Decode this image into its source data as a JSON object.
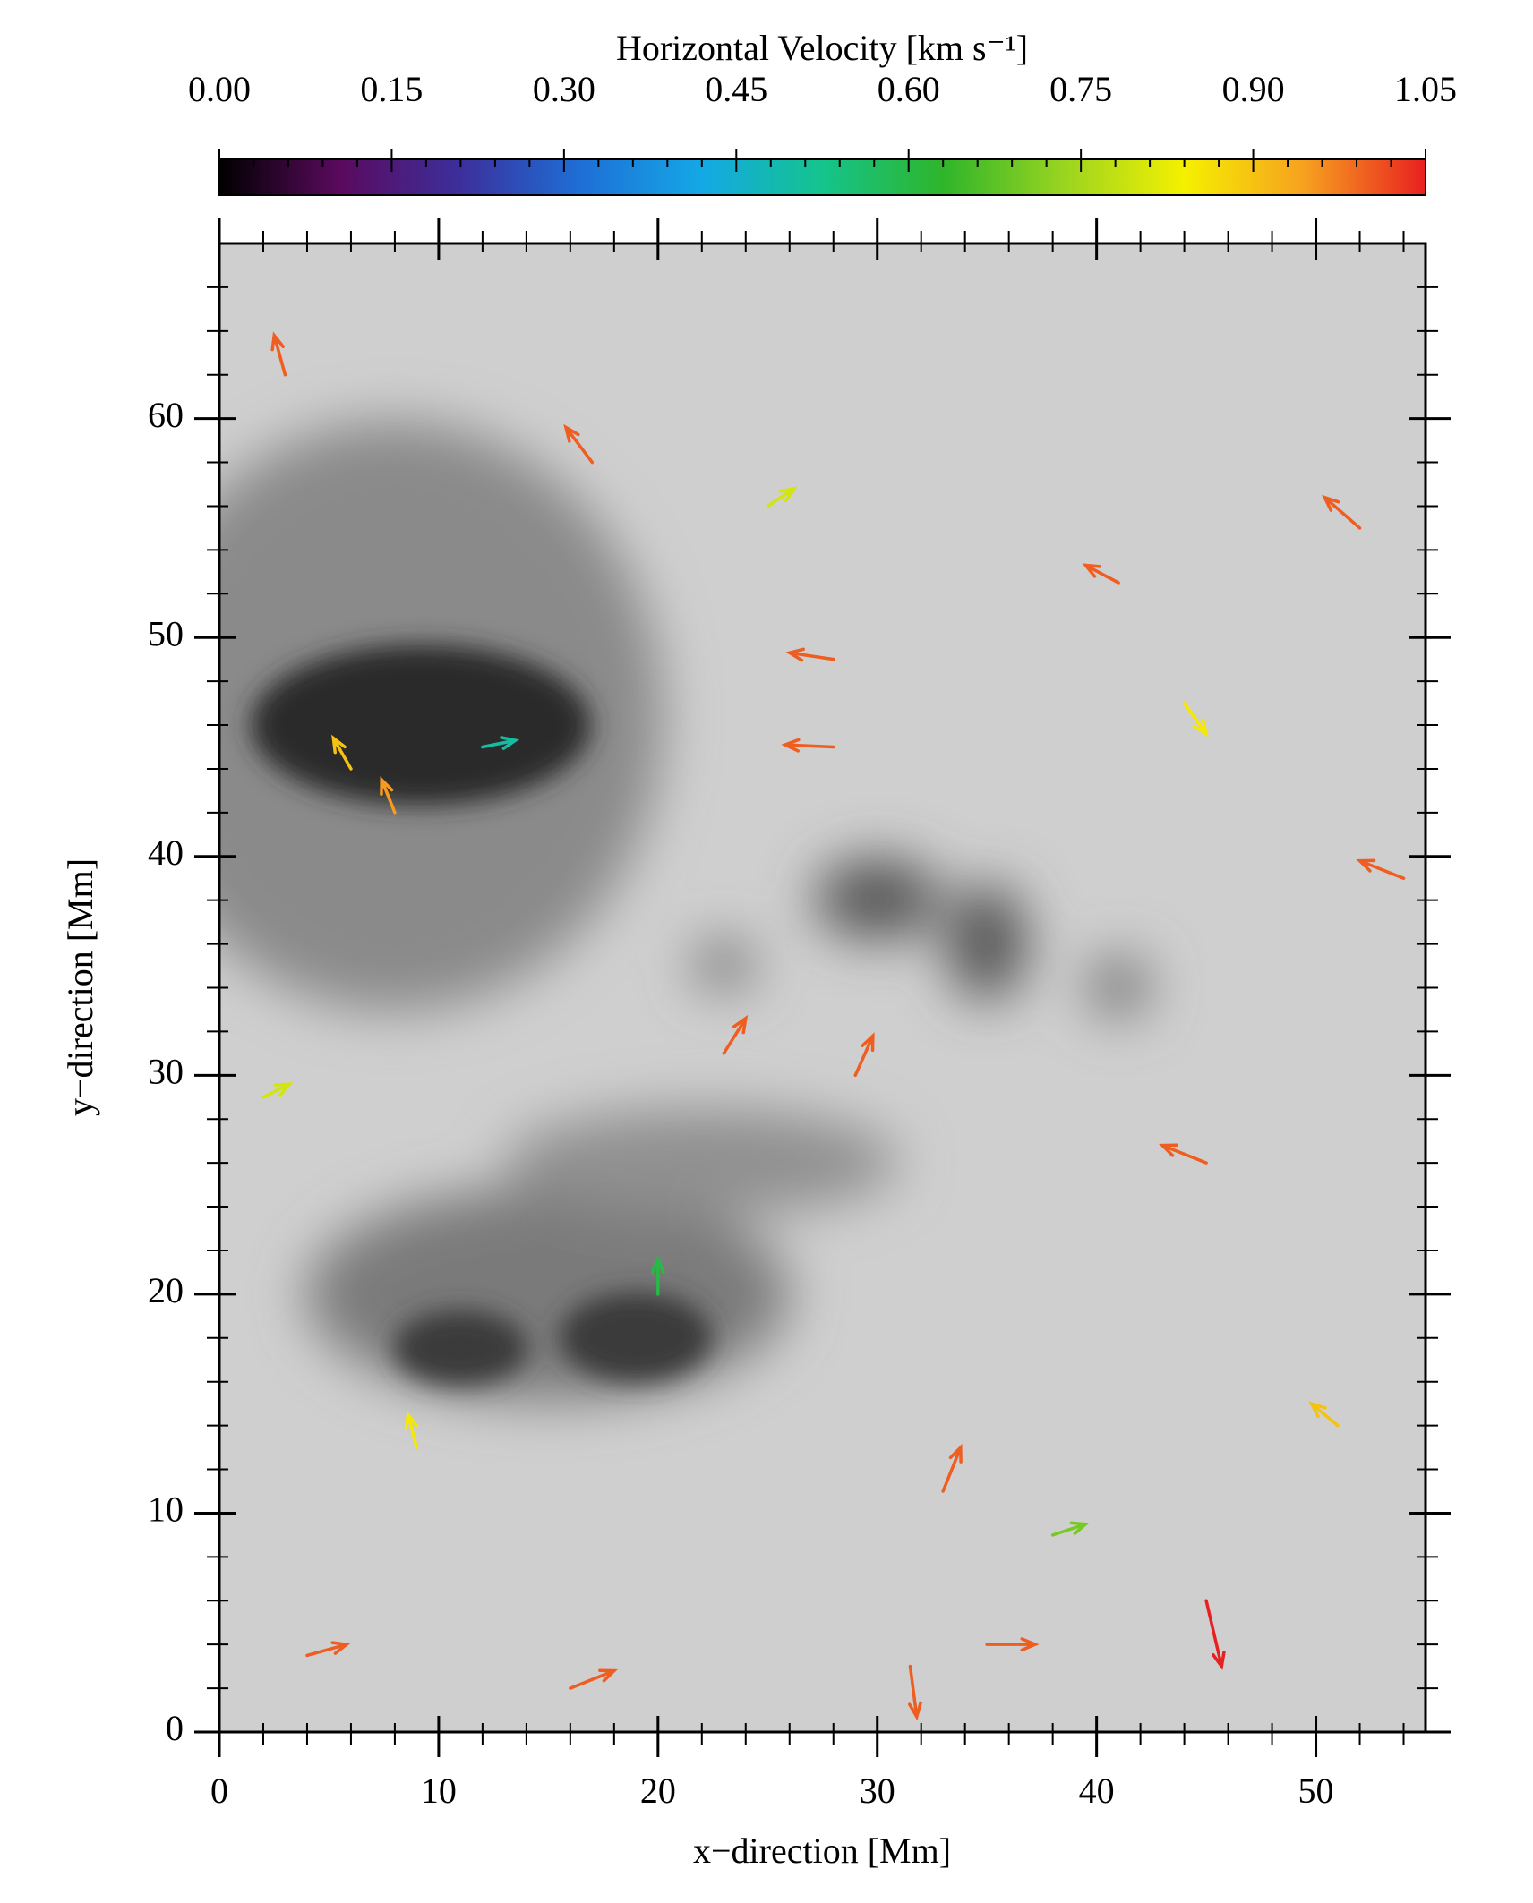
{
  "chart_data": {
    "type": "quiver",
    "colorbar_label": "Horizontal Velocity   [km s⁻¹]",
    "xlabel": "x−direction   [Mm]",
    "ylabel": "y−direction   [Mm]",
    "xlim": [
      0,
      55
    ],
    "ylim": [
      0,
      68
    ],
    "xticks": [
      0,
      10,
      20,
      30,
      40,
      50
    ],
    "yticks": [
      0,
      10,
      20,
      30,
      40,
      50,
      60
    ],
    "xticks_minor": [
      2,
      4,
      6,
      8,
      12,
      14,
      16,
      18,
      22,
      24,
      26,
      28,
      32,
      34,
      36,
      38,
      42,
      44,
      46,
      48,
      52,
      54
    ],
    "yticks_minor": [
      2,
      4,
      6,
      8,
      12,
      14,
      16,
      18,
      22,
      24,
      26,
      28,
      32,
      34,
      36,
      38,
      42,
      44,
      46,
      48,
      52,
      54,
      56,
      58,
      62,
      64,
      66
    ],
    "clim": [
      0,
      1.05
    ],
    "cticks": [
      {
        "value": 0,
        "label": "0.00"
      },
      {
        "value": 0.15,
        "label": "0.15"
      },
      {
        "value": 0.3,
        "label": "0.30"
      },
      {
        "value": 0.45,
        "label": "0.45"
      },
      {
        "value": 0.6,
        "label": "0.60"
      },
      {
        "value": 0.75,
        "label": "0.75"
      },
      {
        "value": 0.9,
        "label": "0.90"
      },
      {
        "value": 1.05,
        "label": "1.05"
      }
    ],
    "cticks_minor": [
      0.03,
      0.06,
      0.09,
      0.12,
      0.18,
      0.21,
      0.24,
      0.27,
      0.33,
      0.36,
      0.39,
      0.42,
      0.48,
      0.51,
      0.54,
      0.57,
      0.63,
      0.66,
      0.69,
      0.72,
      0.78,
      0.81,
      0.84,
      0.87,
      0.93,
      0.96,
      0.99,
      1.02
    ],
    "colormap": [
      "#000000",
      "#5a0a5e",
      "#3c2f9c",
      "#1e6fd6",
      "#14a8e6",
      "#14c48c",
      "#2fb52a",
      "#9ad420",
      "#f5f000",
      "#f7a020",
      "#e82020"
    ],
    "vectors": {
      "x": [
        3,
        6,
        8,
        17,
        28,
        28,
        41,
        52,
        54,
        23,
        29,
        45,
        33,
        45,
        31.5,
        35,
        16,
        4,
        51,
        25,
        9,
        2,
        44,
        12,
        20,
        38
      ],
      "y": [
        62,
        44,
        42,
        58,
        45,
        49,
        52.5,
        55,
        39,
        31,
        30,
        26,
        11,
        6,
        3,
        4,
        2,
        3.5,
        14,
        56,
        13,
        29,
        47,
        45,
        20,
        9
      ],
      "u": [
        -0.5,
        -0.8,
        -0.6,
        -1.2,
        -2.2,
        -2,
        -1.5,
        -1.6,
        -2,
        1,
        0.8,
        -2,
        0.8,
        0.7,
        0.3,
        2.2,
        2,
        1.8,
        -1.2,
        1.2,
        -0.4,
        1.2,
        1,
        1.5,
        0,
        1.5
      ],
      "v": [
        1.8,
        1.4,
        1.5,
        1.6,
        0.1,
        0.3,
        0.8,
        1.4,
        0.8,
        1.6,
        1.8,
        0.8,
        2,
        -3,
        -2.3,
        0,
        0.8,
        0.5,
        1,
        0.8,
        1.5,
        0.6,
        -1.4,
        0.3,
        1.6,
        0.5
      ],
      "speed": [
        1,
        0.9,
        0.95,
        1,
        1,
        1,
        1,
        1,
        1,
        1,
        1,
        1,
        1,
        1.05,
        1,
        1,
        1,
        1,
        0.9,
        0.8,
        0.85,
        0.8,
        0.85,
        0.5,
        0.6,
        0.7
      ]
    }
  }
}
